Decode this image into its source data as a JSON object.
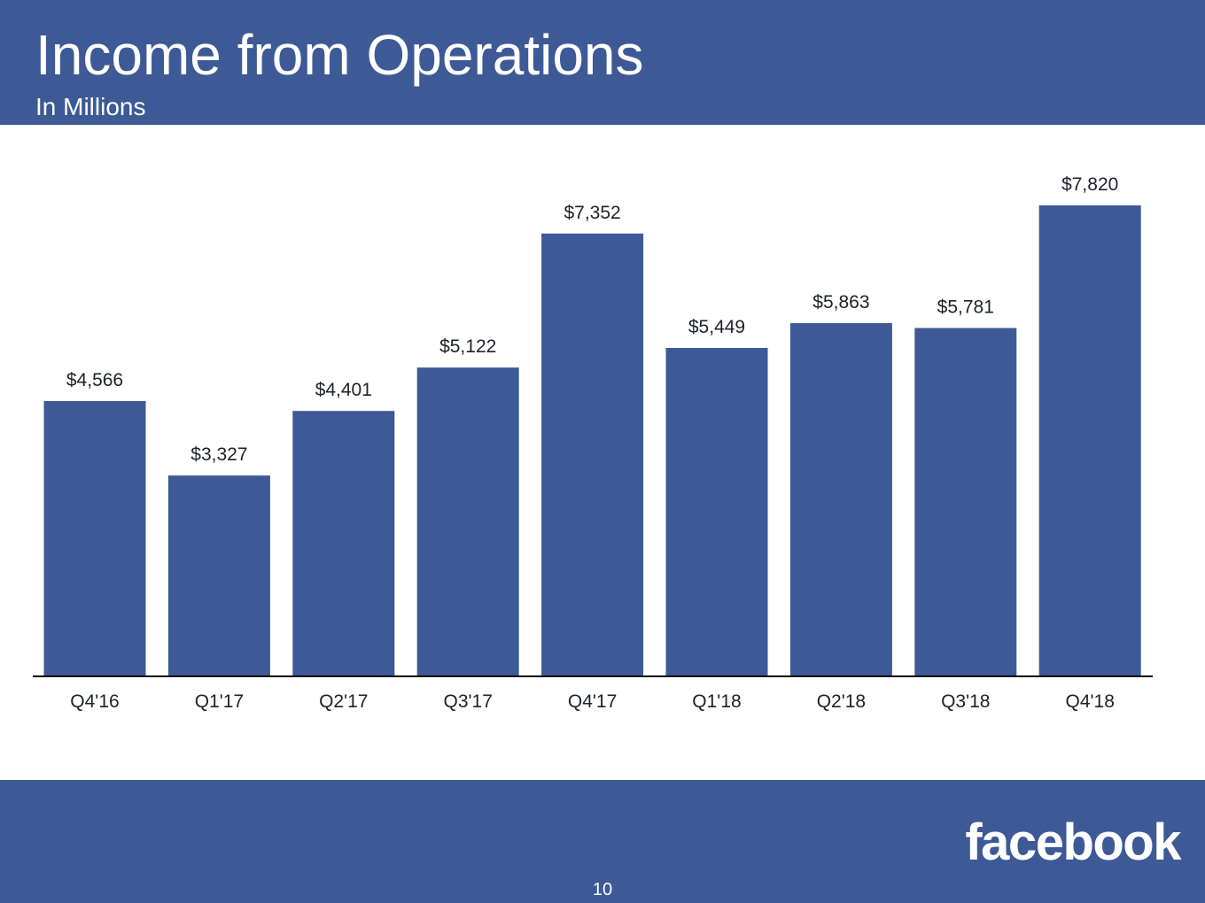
{
  "header": {
    "title": "Income from Operations",
    "subtitle": "In Millions"
  },
  "footer": {
    "logo_text": "facebook",
    "page_number": "10"
  },
  "colors": {
    "brand_blue": "#3d5a96",
    "bar": "#3d5a96",
    "text": "#1d2129"
  },
  "chart_data": {
    "type": "bar",
    "title": "Income from Operations",
    "subtitle": "In Millions",
    "categories": [
      "Q4'16",
      "Q1'17",
      "Q2'17",
      "Q3'17",
      "Q4'17",
      "Q1'18",
      "Q2'18",
      "Q3'18",
      "Q4'18"
    ],
    "values": [
      4566,
      3327,
      4401,
      5122,
      7352,
      5449,
      5863,
      5781,
      7820
    ],
    "data_labels": [
      "$4,566",
      "$3,327",
      "$4,401",
      "$5,122",
      "$7,352",
      "$5,449",
      "$5,863",
      "$5,781",
      "$7,820"
    ],
    "xlabel": "",
    "ylabel": "",
    "grid": false,
    "legend": "none"
  }
}
